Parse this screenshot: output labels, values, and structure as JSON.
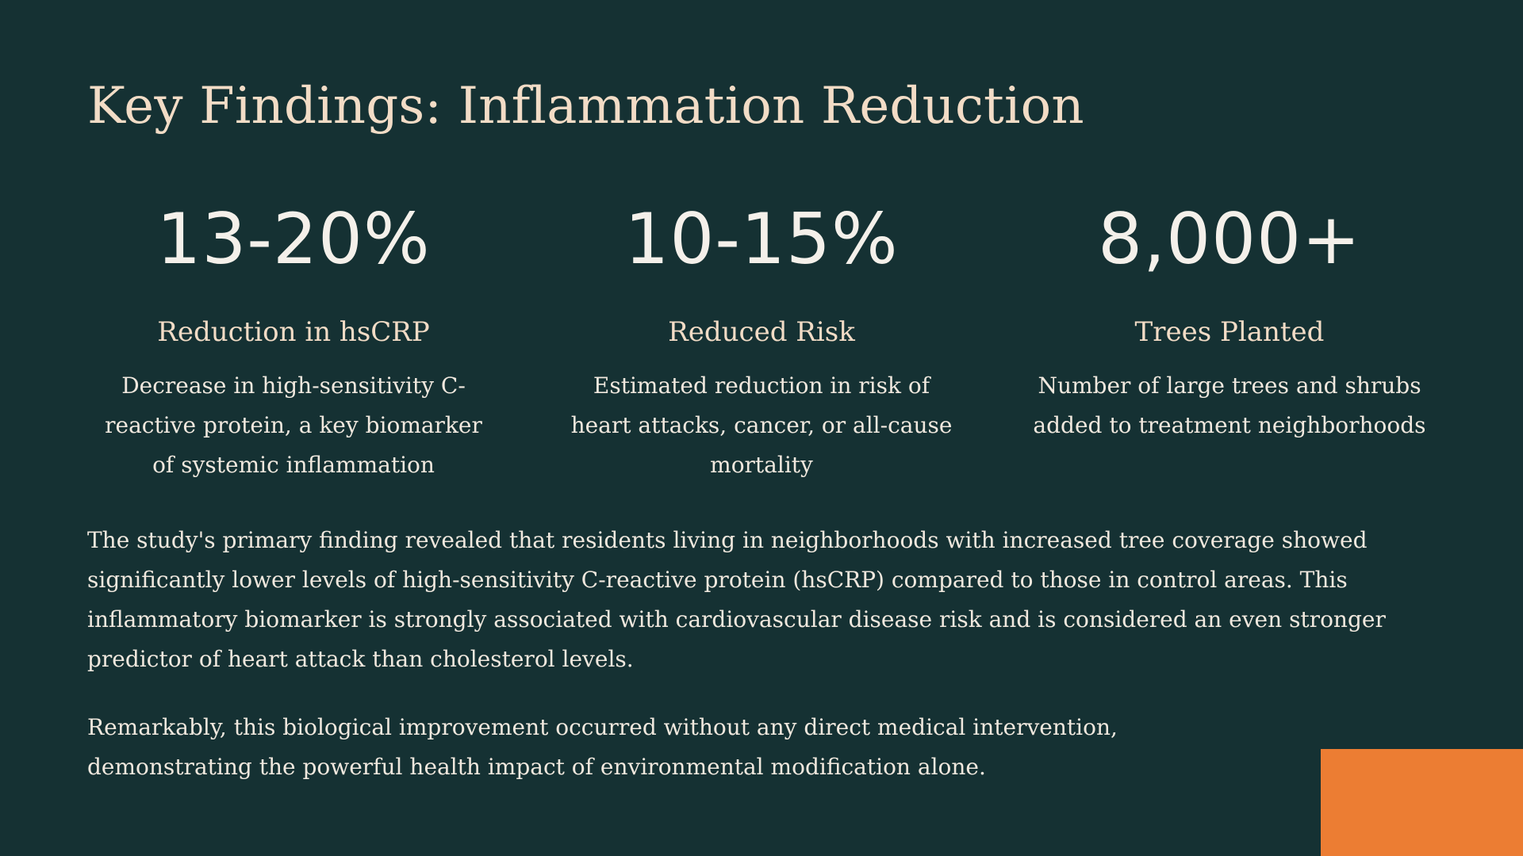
{
  "slide": {
    "title": "Key Findings: Inflammation Reduction",
    "stats": [
      {
        "value": "13-20%",
        "label": "Reduction in hsCRP",
        "description": "Decrease in high-sensitivity C-reactive protein, a key biomarker of systemic inflammation"
      },
      {
        "value": "10-15%",
        "label": "Reduced Risk",
        "description": "Estimated reduction in risk of heart attacks, cancer, or all-cause mortality"
      },
      {
        "value": "8,000+",
        "label": "Trees Planted",
        "description": "Number of large trees and shrubs added to treatment neighborhoods"
      }
    ],
    "paragraphs": [
      "The study's primary finding revealed that residents living in neighborhoods with increased tree coverage showed significantly lower levels of high-sensitivity C-reactive protein (hsCRP) compared to those in control areas. This inflammatory biomarker is strongly associated with cardiovascular disease risk and is considered an even stronger predictor of heart attack than cholesterol levels.",
      "Remarkably, this biological improvement occurred without any direct medical intervention, demonstrating the powerful health impact of environmental modification alone."
    ]
  },
  "colors": {
    "background": "#153133",
    "title": "#f2dcc6",
    "text": "#f0e8de",
    "accent": "#ec7d33"
  }
}
